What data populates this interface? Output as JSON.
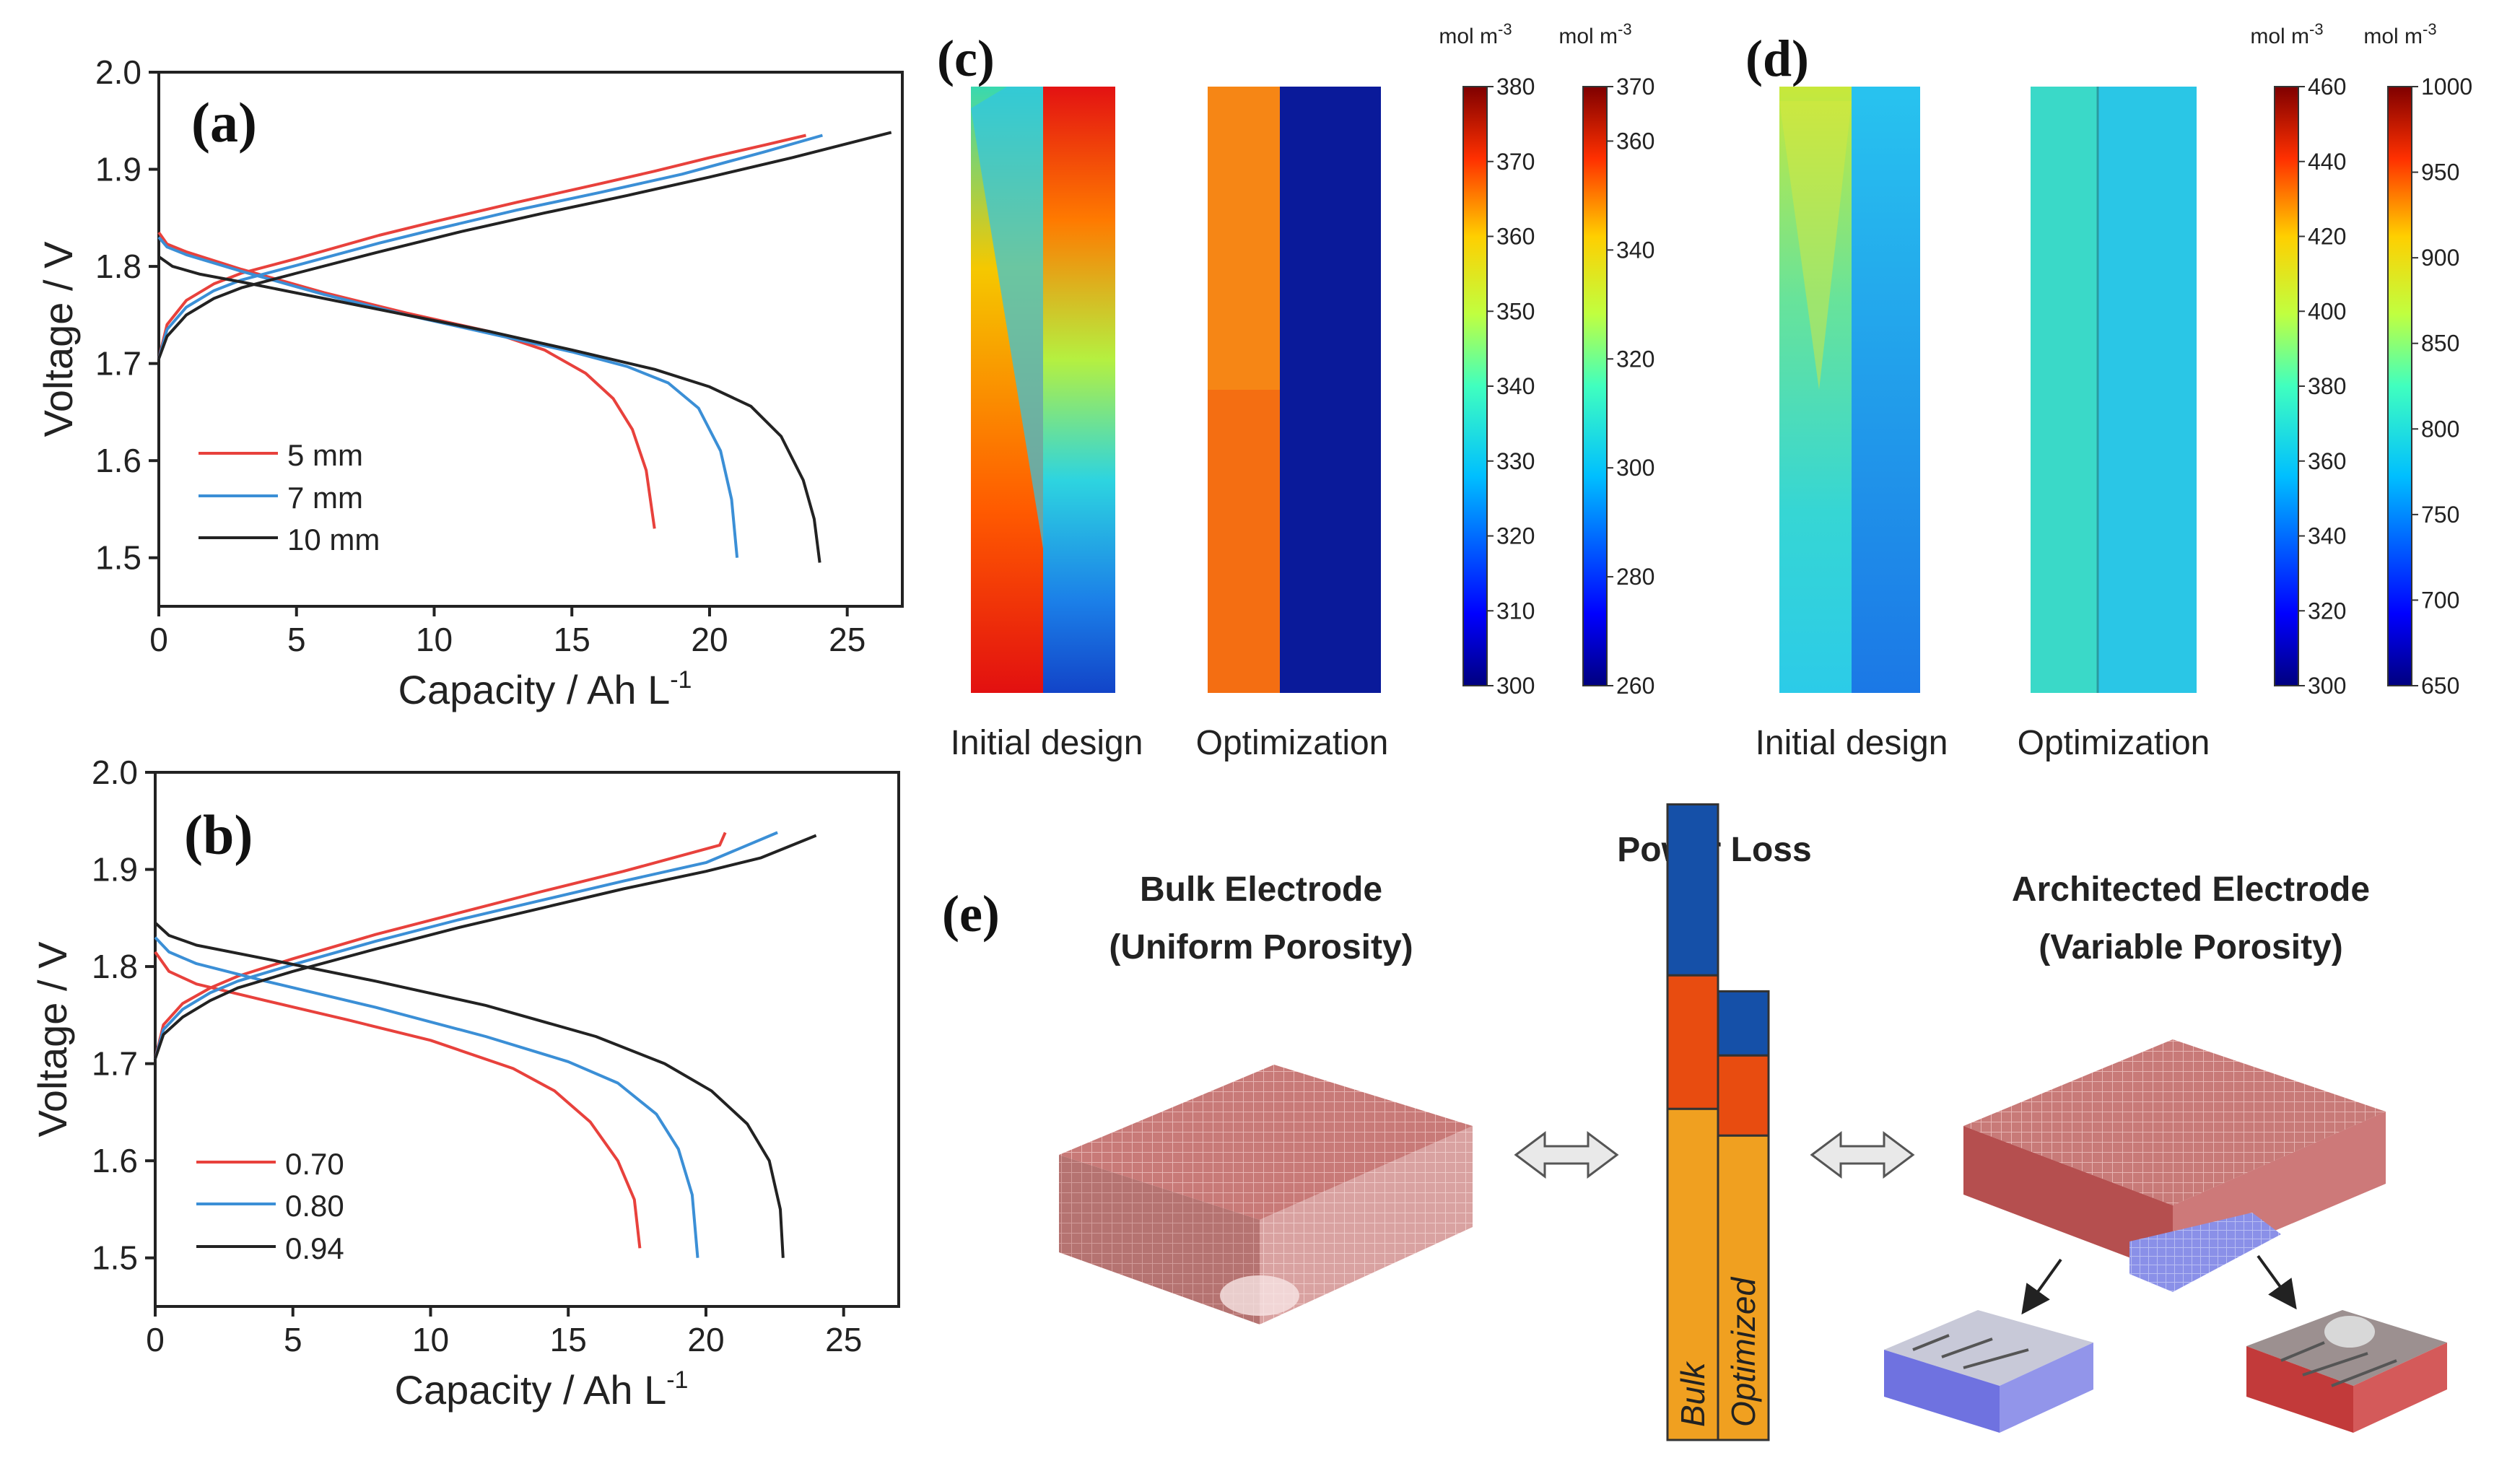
{
  "colors": {
    "red": "#e8413c",
    "blue": "#3b8fd6",
    "black": "#222222",
    "navy": "#1550a8",
    "bar_orange": "#f0a020",
    "bar_red": "#e84c10",
    "bar_blue": "#1550a8",
    "block": "#c96c6c"
  },
  "chart_data": [
    {
      "id": "a",
      "type": "line",
      "panel_label": "(a)",
      "xlabel": "Capacity / Ah L",
      "xlabel_sup": "-1",
      "ylabel": "Voltage / V",
      "xlim": [
        0,
        27
      ],
      "ylim": [
        1.45,
        2.0
      ],
      "x_ticks": [
        "0",
        "5",
        "10",
        "15",
        "20",
        "25"
      ],
      "y_ticks": [
        "1.5",
        "1.6",
        "1.7",
        "1.8",
        "1.9",
        "2.0"
      ],
      "legend": [
        "5 mm",
        "7 mm",
        "10 mm"
      ],
      "series": [
        {
          "name": "5 mm",
          "color": "red",
          "charge": [
            [
              0,
              1.705
            ],
            [
              0.3,
              1.74
            ],
            [
              1,
              1.765
            ],
            [
              2,
              1.782
            ],
            [
              3,
              1.793
            ],
            [
              5,
              1.808
            ],
            [
              8,
              1.832
            ],
            [
              10,
              1.846
            ],
            [
              13,
              1.866
            ],
            [
              16,
              1.885
            ],
            [
              18,
              1.898
            ],
            [
              20,
              1.912
            ],
            [
              22,
              1.925
            ],
            [
              23.5,
              1.935
            ]
          ],
          "discharge": [
            [
              0,
              1.835
            ],
            [
              0.3,
              1.823
            ],
            [
              1,
              1.815
            ],
            [
              3,
              1.797
            ],
            [
              6,
              1.773
            ],
            [
              9,
              1.752
            ],
            [
              12,
              1.733
            ],
            [
              14,
              1.714
            ],
            [
              15.5,
              1.69
            ],
            [
              16.5,
              1.664
            ],
            [
              17.2,
              1.632
            ],
            [
              17.7,
              1.59
            ],
            [
              18,
              1.53
            ]
          ]
        },
        {
          "name": "7 mm",
          "color": "blue",
          "charge": [
            [
              0,
              1.705
            ],
            [
              0.3,
              1.735
            ],
            [
              1,
              1.758
            ],
            [
              2,
              1.775
            ],
            [
              3,
              1.786
            ],
            [
              5,
              1.801
            ],
            [
              8,
              1.824
            ],
            [
              10,
              1.838
            ],
            [
              13,
              1.858
            ],
            [
              16,
              1.876
            ],
            [
              19,
              1.895
            ],
            [
              22,
              1.918
            ],
            [
              24.1,
              1.935
            ]
          ],
          "discharge": [
            [
              0,
              1.83
            ],
            [
              0.3,
              1.82
            ],
            [
              1,
              1.812
            ],
            [
              3,
              1.795
            ],
            [
              6,
              1.771
            ],
            [
              9,
              1.75
            ],
            [
              12,
              1.731
            ],
            [
              15,
              1.712
            ],
            [
              17,
              1.697
            ],
            [
              18.5,
              1.68
            ],
            [
              19.6,
              1.654
            ],
            [
              20.4,
              1.61
            ],
            [
              20.8,
              1.56
            ],
            [
              21,
              1.5
            ]
          ]
        },
        {
          "name": "10 mm",
          "color": "black",
          "charge": [
            [
              0,
              1.705
            ],
            [
              0.3,
              1.728
            ],
            [
              1,
              1.75
            ],
            [
              2,
              1.767
            ],
            [
              3,
              1.778
            ],
            [
              5,
              1.793
            ],
            [
              8,
              1.815
            ],
            [
              11,
              1.836
            ],
            [
              14,
              1.855
            ],
            [
              17,
              1.873
            ],
            [
              20,
              1.892
            ],
            [
              23,
              1.912
            ],
            [
              26.6,
              1.938
            ]
          ],
          "discharge": [
            [
              0,
              1.81
            ],
            [
              0.5,
              1.8
            ],
            [
              1.5,
              1.792
            ],
            [
              3,
              1.784
            ],
            [
              6,
              1.767
            ],
            [
              9,
              1.75
            ],
            [
              12,
              1.733
            ],
            [
              15,
              1.714
            ],
            [
              18,
              1.694
            ],
            [
              20,
              1.676
            ],
            [
              21.5,
              1.656
            ],
            [
              22.6,
              1.625
            ],
            [
              23.4,
              1.58
            ],
            [
              23.8,
              1.54
            ],
            [
              24,
              1.495
            ]
          ]
        }
      ]
    },
    {
      "id": "b",
      "type": "line",
      "panel_label": "(b)",
      "xlabel": "Capacity / Ah L",
      "xlabel_sup": "-1",
      "ylabel": "Voltage / V",
      "xlim": [
        0,
        27
      ],
      "ylim": [
        1.45,
        2.0
      ],
      "x_ticks": [
        "0",
        "5",
        "10",
        "15",
        "20",
        "25"
      ],
      "y_ticks": [
        "1.5",
        "1.6",
        "1.7",
        "1.8",
        "1.9",
        "2.0"
      ],
      "legend": [
        "0.70",
        "0.80",
        "0.94"
      ],
      "series": [
        {
          "name": "0.70",
          "color": "red",
          "charge": [
            [
              0,
              1.705
            ],
            [
              0.3,
              1.74
            ],
            [
              1,
              1.762
            ],
            [
              2,
              1.778
            ],
            [
              3,
              1.79
            ],
            [
              5,
              1.808
            ],
            [
              8,
              1.833
            ],
            [
              11,
              1.855
            ],
            [
              14,
              1.877
            ],
            [
              17,
              1.898
            ],
            [
              20.5,
              1.925
            ],
            [
              20.7,
              1.938
            ]
          ],
          "discharge": [
            [
              0,
              1.815
            ],
            [
              0.5,
              1.795
            ],
            [
              1.5,
              1.782
            ],
            [
              4,
              1.765
            ],
            [
              7,
              1.745
            ],
            [
              10,
              1.724
            ],
            [
              13,
              1.695
            ],
            [
              14.5,
              1.672
            ],
            [
              15.8,
              1.64
            ],
            [
              16.8,
              1.6
            ],
            [
              17.4,
              1.56
            ],
            [
              17.6,
              1.51
            ]
          ]
        },
        {
          "name": "0.80",
          "color": "blue",
          "charge": [
            [
              0,
              1.705
            ],
            [
              0.3,
              1.735
            ],
            [
              1,
              1.756
            ],
            [
              2,
              1.773
            ],
            [
              3,
              1.785
            ],
            [
              5,
              1.802
            ],
            [
              8,
              1.826
            ],
            [
              11,
              1.848
            ],
            [
              14,
              1.868
            ],
            [
              17,
              1.888
            ],
            [
              20,
              1.907
            ],
            [
              22.6,
              1.938
            ]
          ],
          "discharge": [
            [
              0,
              1.83
            ],
            [
              0.5,
              1.815
            ],
            [
              1.5,
              1.803
            ],
            [
              4,
              1.785
            ],
            [
              8,
              1.758
            ],
            [
              12,
              1.728
            ],
            [
              15,
              1.702
            ],
            [
              16.8,
              1.68
            ],
            [
              18.2,
              1.648
            ],
            [
              19,
              1.612
            ],
            [
              19.5,
              1.565
            ],
            [
              19.7,
              1.5
            ]
          ]
        },
        {
          "name": "0.94",
          "color": "black",
          "charge": [
            [
              0,
              1.705
            ],
            [
              0.3,
              1.73
            ],
            [
              1,
              1.748
            ],
            [
              2,
              1.765
            ],
            [
              3,
              1.778
            ],
            [
              5,
              1.795
            ],
            [
              8,
              1.818
            ],
            [
              11,
              1.84
            ],
            [
              14,
              1.86
            ],
            [
              17,
              1.88
            ],
            [
              20,
              1.898
            ],
            [
              22,
              1.912
            ],
            [
              24,
              1.935
            ]
          ],
          "discharge": [
            [
              0,
              1.845
            ],
            [
              0.5,
              1.832
            ],
            [
              1.5,
              1.822
            ],
            [
              4,
              1.808
            ],
            [
              8,
              1.785
            ],
            [
              12,
              1.76
            ],
            [
              16,
              1.728
            ],
            [
              18.5,
              1.7
            ],
            [
              20.2,
              1.672
            ],
            [
              21.5,
              1.638
            ],
            [
              22.3,
              1.6
            ],
            [
              22.7,
              1.55
            ],
            [
              22.8,
              1.5
            ]
          ]
        }
      ]
    },
    {
      "id": "c",
      "type": "heatmap",
      "panel_label": "(c)",
      "labels": [
        "Initial design",
        "Optimization"
      ],
      "colorbars": [
        {
          "unit": "mol m",
          "unit_sup": "-3",
          "min": 300,
          "max": 380,
          "ticks": [
            "380",
            "370",
            "360",
            "350",
            "340",
            "330",
            "320",
            "310",
            "300"
          ]
        },
        {
          "unit": "mol m",
          "unit_sup": "-3",
          "min": 260,
          "max": 370,
          "ticks": [
            "370",
            "360",
            "340",
            "320",
            "300",
            "280",
            "260"
          ]
        }
      ]
    },
    {
      "id": "d",
      "type": "heatmap",
      "panel_label": "(d)",
      "labels": [
        "Initial design",
        "Optimization"
      ],
      "colorbars": [
        {
          "unit": "mol m",
          "unit_sup": "-3",
          "min": 300,
          "max": 460,
          "ticks": [
            "460",
            "440",
            "420",
            "400",
            "380",
            "360",
            "340",
            "320",
            "300"
          ]
        },
        {
          "unit": "mol m",
          "unit_sup": "-3",
          "min": 650,
          "max": 1000,
          "ticks": [
            "1000",
            "950",
            "900",
            "850",
            "800",
            "750",
            "700",
            "650"
          ]
        }
      ]
    },
    {
      "id": "e",
      "type": "bar",
      "panel_label": "(e)",
      "title": "Power Loss",
      "categories": [
        "Bulk",
        "Optimized"
      ],
      "stack_segments": [
        "orange",
        "red",
        "blue"
      ],
      "values": [
        [
          0.62,
          0.25,
          0.32
        ],
        [
          0.57,
          0.15,
          0.12
        ]
      ],
      "left_title": [
        "Bulk Electrode",
        "(Uniform Porosity)"
      ],
      "right_title": [
        "Architected Electrode",
        "(Variable Porosity)"
      ]
    }
  ]
}
